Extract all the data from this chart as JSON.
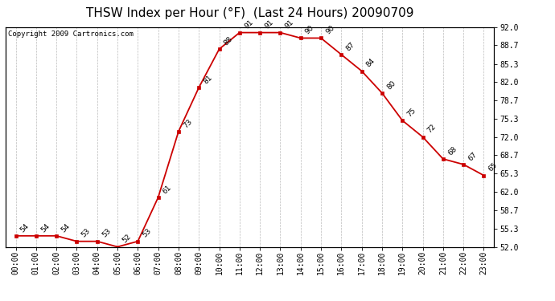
{
  "title": "THSW Index per Hour (°F)  (Last 24 Hours) 20090709",
  "copyright": "Copyright 2009 Cartronics.com",
  "hours": [
    0,
    1,
    2,
    3,
    4,
    5,
    6,
    7,
    8,
    9,
    10,
    11,
    12,
    13,
    14,
    15,
    16,
    17,
    18,
    19,
    20,
    21,
    22,
    23
  ],
  "values": [
    54,
    54,
    54,
    53,
    53,
    52,
    53,
    61,
    73,
    81,
    88,
    91,
    91,
    91,
    90,
    90,
    87,
    84,
    80,
    75,
    72,
    68,
    67,
    65
  ],
  "xlabels": [
    "00:00",
    "01:00",
    "02:00",
    "03:00",
    "04:00",
    "05:00",
    "06:00",
    "07:00",
    "08:00",
    "09:00",
    "10:00",
    "11:00",
    "12:00",
    "13:00",
    "14:00",
    "15:00",
    "16:00",
    "17:00",
    "18:00",
    "19:00",
    "20:00",
    "21:00",
    "22:00",
    "23:00"
  ],
  "yticks": [
    52.0,
    55.3,
    58.7,
    62.0,
    65.3,
    68.7,
    72.0,
    75.3,
    78.7,
    82.0,
    85.3,
    88.7,
    92.0
  ],
  "ytick_labels": [
    "52.0",
    "55.3",
    "58.7",
    "62.0",
    "65.3",
    "68.7",
    "72.0",
    "75.3",
    "78.7",
    "82.0",
    "85.3",
    "88.7",
    "92.0"
  ],
  "ylim": [
    52.0,
    92.0
  ],
  "line_color": "#cc0000",
  "marker_color": "#cc0000",
  "bg_color": "#ffffff",
  "grid_color": "#aaaaaa",
  "title_fontsize": 11,
  "label_fontsize": 7,
  "copyright_fontsize": 6.5,
  "value_fontsize": 6.5
}
